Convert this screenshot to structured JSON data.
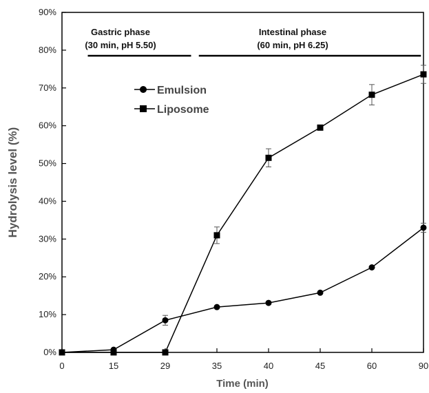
{
  "chart_data": {
    "type": "line",
    "xlabel": "Time (min)",
    "ylabel": "Hydrolysis level (%)",
    "categories": [
      "0",
      "15",
      "29",
      "35",
      "40",
      "45",
      "60",
      "90"
    ],
    "y_ticks": [
      "0%",
      "10%",
      "20%",
      "30%",
      "40%",
      "50%",
      "60%",
      "70%",
      "80%",
      "90%"
    ],
    "ylim": [
      0,
      90
    ],
    "grid": false,
    "legend_position": "upper-left inside plot",
    "series": [
      {
        "name": "Emulsion",
        "marker": "circle",
        "values": [
          0,
          0.7,
          8.5,
          12.0,
          13.1,
          15.8,
          22.5,
          33.0
        ],
        "errors": [
          0,
          0,
          1.3,
          0,
          0,
          0,
          0,
          1.2
        ]
      },
      {
        "name": "Liposome",
        "marker": "square",
        "values": [
          0,
          0,
          0,
          31.0,
          51.5,
          59.5,
          68.2,
          73.6
        ],
        "errors": [
          0,
          0,
          0,
          2.2,
          2.4,
          0,
          2.7,
          2.4
        ]
      }
    ],
    "annotations": {
      "gastric": {
        "line1": "Gastric phase",
        "line2": "(30 min, pH 5.50)",
        "x_start": 0.5,
        "x_end": 2.5
      },
      "intestinal": {
        "line1": "Intestinal phase",
        "line2": "(60 min, pH 6.25)",
        "x_start": 2.65,
        "x_end": 6.95
      }
    }
  }
}
